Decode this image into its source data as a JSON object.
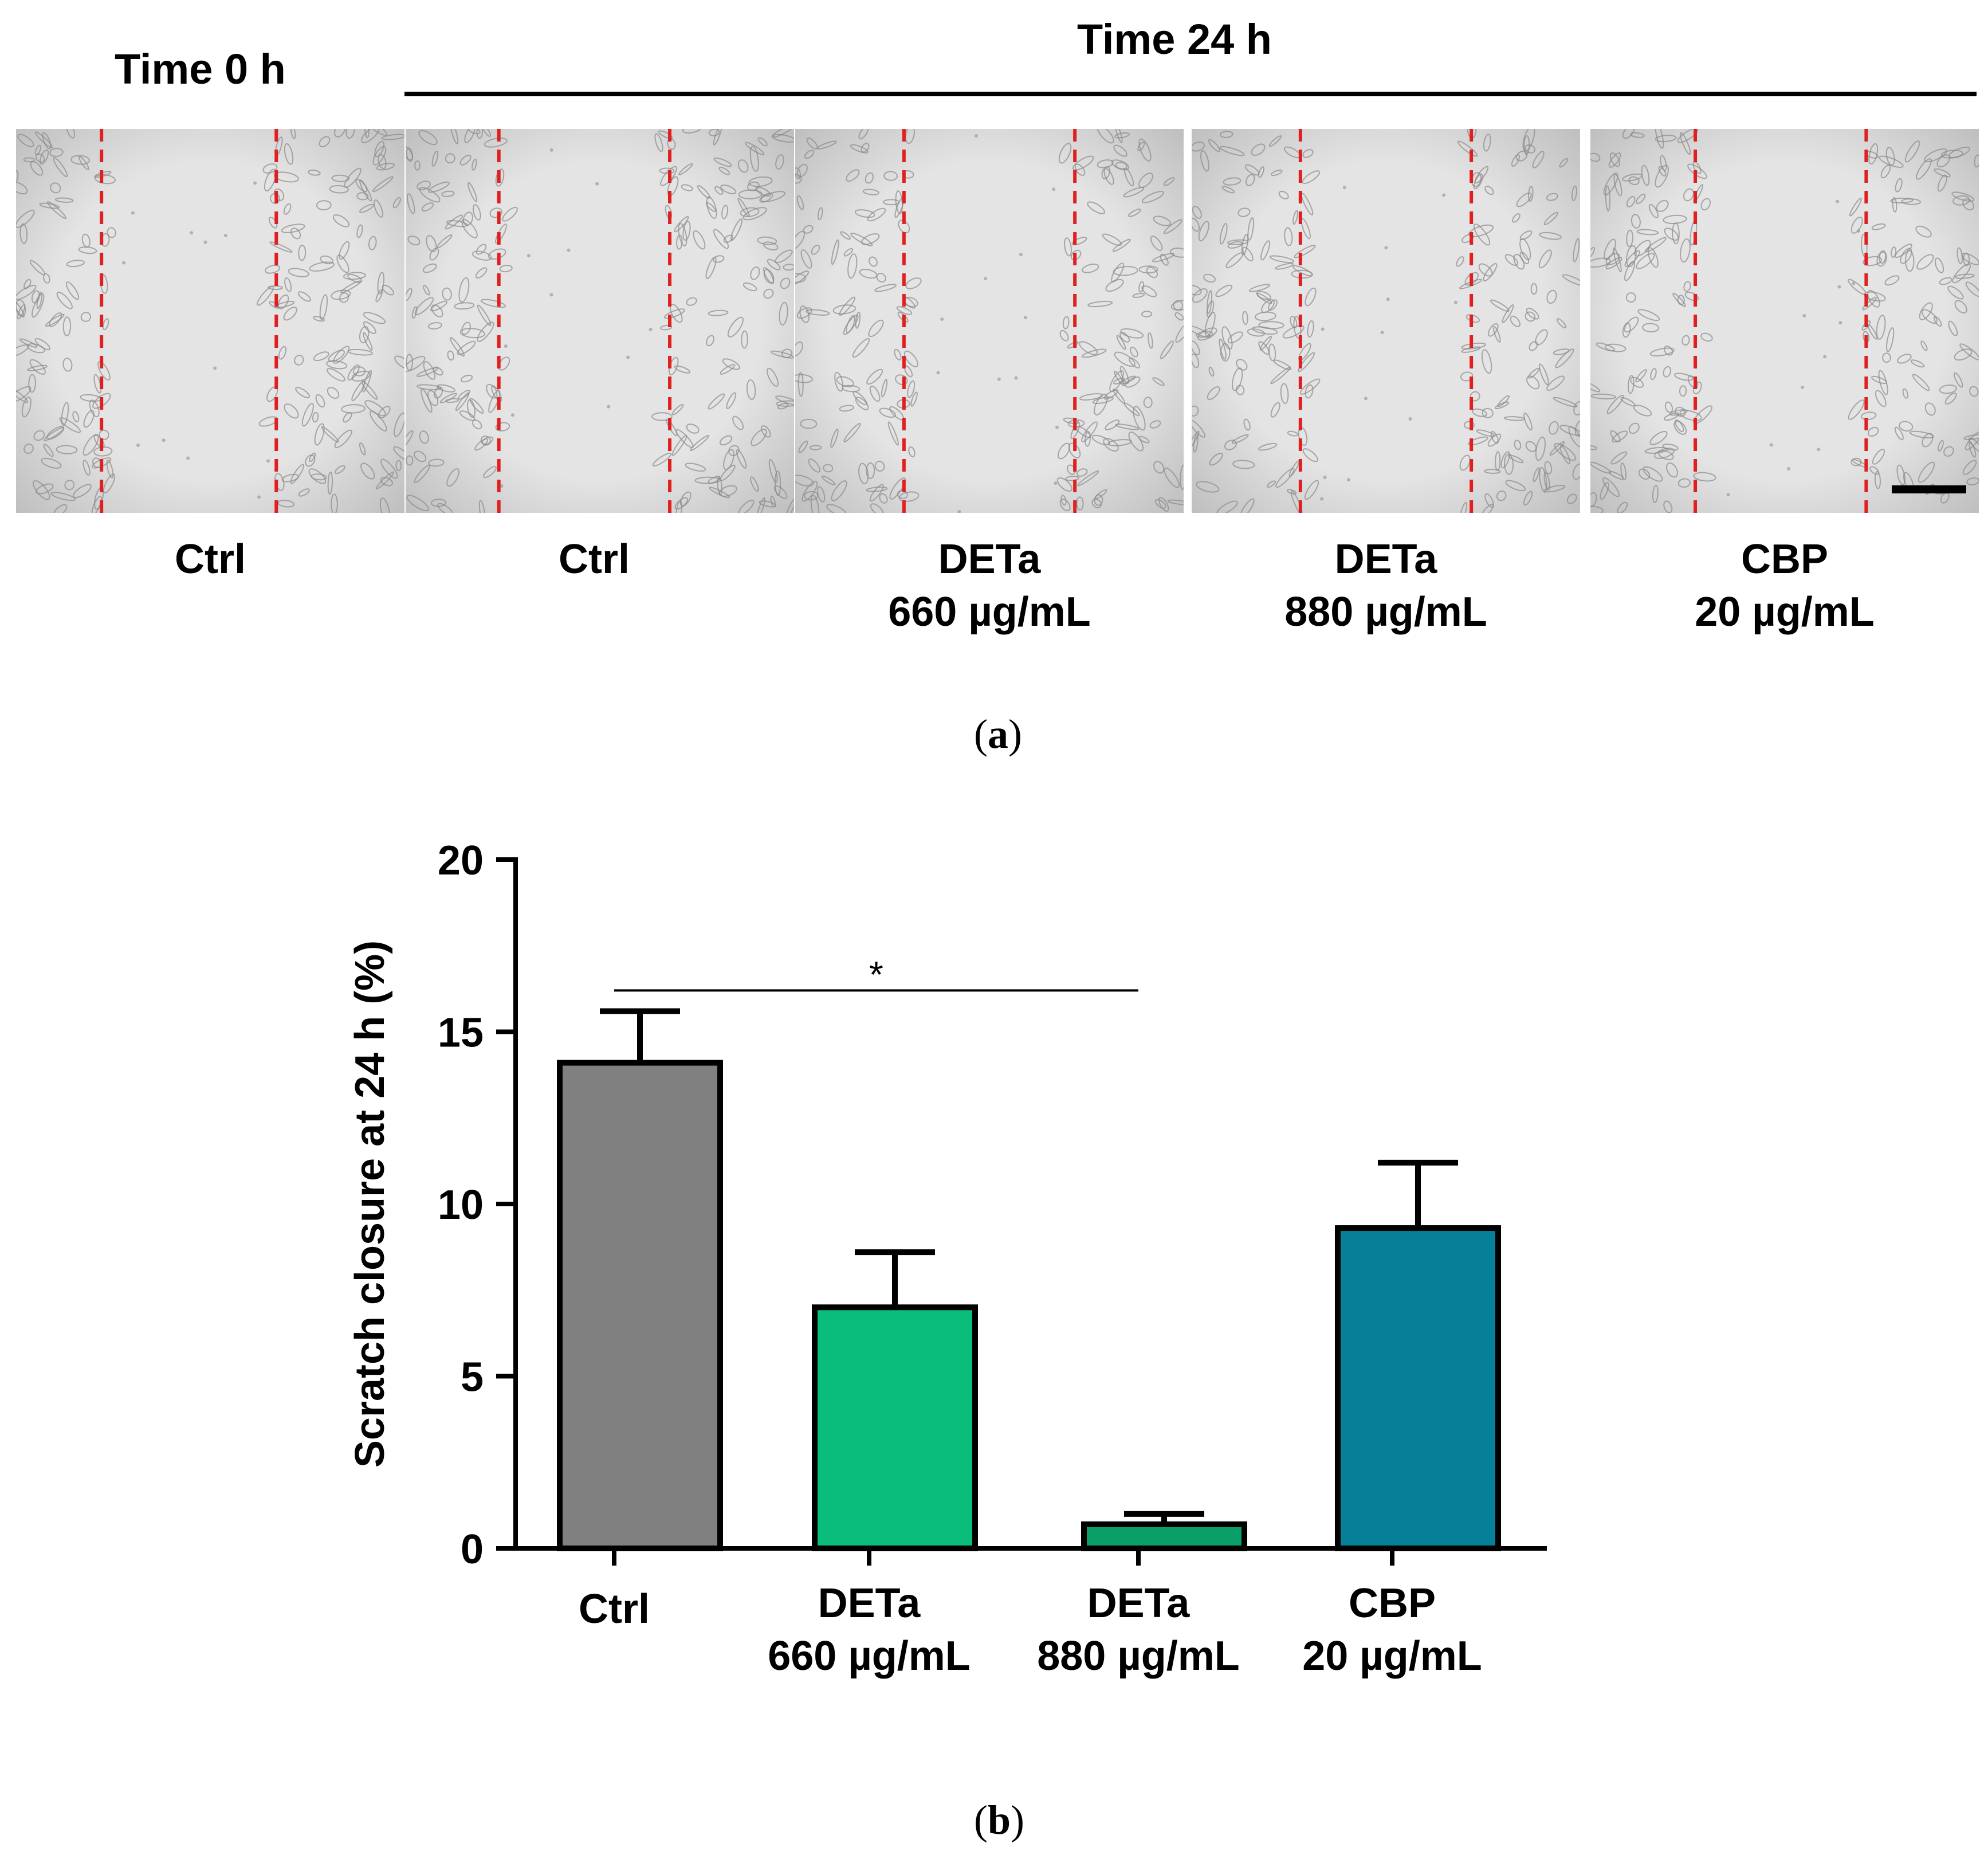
{
  "panel_a": {
    "label": "a",
    "header_left": "Time 0 h",
    "header_right": "Time 24 h",
    "panels": [
      {
        "name": "Ctrl",
        "sub": ""
      },
      {
        "name": "Ctrl",
        "sub": ""
      },
      {
        "name": "DETa",
        "sub": "660 µg/mL"
      },
      {
        "name": "DETa",
        "sub": "880 µg/mL"
      },
      {
        "name": "CBP",
        "sub": "20 µg/mL"
      }
    ]
  },
  "panel_b": {
    "label": "b"
  },
  "colors": {
    "ctrl": "#808080",
    "deta660": "#0bbd7a",
    "deta880": "#0a9e69",
    "cbp": "#067f99",
    "scratch_line": "#e02020"
  },
  "chart_data": {
    "type": "bar",
    "title": "",
    "xlabel": "",
    "ylabel": "Scratch closure at 24 h (%)",
    "ylim": [
      0,
      20
    ],
    "yticks": [
      "0",
      "5",
      "10",
      "15",
      "20"
    ],
    "categories": [
      {
        "line1": "Ctrl",
        "line2": ""
      },
      {
        "line1": "DETa",
        "line2": "660 µg/mL"
      },
      {
        "line1": "DETa",
        "line2": "880 µg/mL"
      },
      {
        "line1": "CBP",
        "line2": "20 µg/mL"
      }
    ],
    "values": [
      14.1,
      7.0,
      0.7,
      9.3
    ],
    "errors": [
      1.5,
      1.6,
      0.3,
      1.9
    ],
    "significance": [
      {
        "from": 0,
        "to": 2,
        "label": "*"
      }
    ]
  }
}
